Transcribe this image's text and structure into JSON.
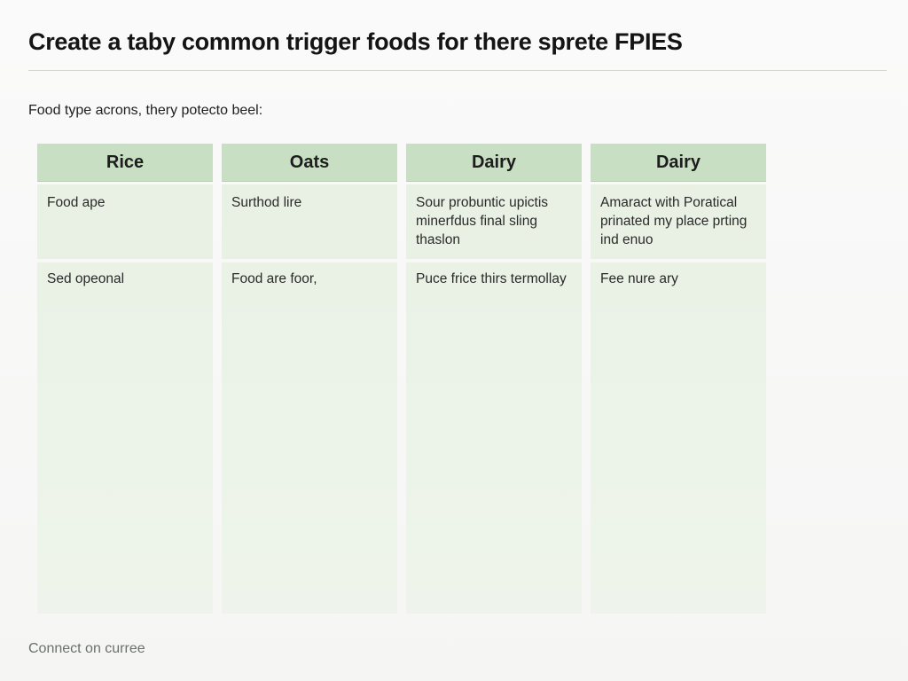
{
  "header": {
    "title": "Create a taby common trigger foods for there sprete FPIES"
  },
  "intro": {
    "text": "Food type acrons, thery potecto beel:"
  },
  "table": {
    "columns": [
      {
        "header": "Rice",
        "row1": "Food ape",
        "row2": "Sed opeonal"
      },
      {
        "header": "Oats",
        "row1": "Surthod lire",
        "row2": "Food are foor,"
      },
      {
        "header": "Dairy",
        "row1": "Sour probuntic upictis minerfdus final sling thaslon",
        "row2": "Puce frice thirs termollay"
      },
      {
        "header": "Dairy",
        "row1": "Amaract with Poratical prinated my place prting ind enuo",
        "row2": "Fee nure ary"
      }
    ]
  },
  "footer": {
    "link": "Connect on curree"
  },
  "colors": {
    "header_fill": "#c8dfc3",
    "cell_fill": "#e9f1e4",
    "footer_text": "#6c6f6a"
  }
}
